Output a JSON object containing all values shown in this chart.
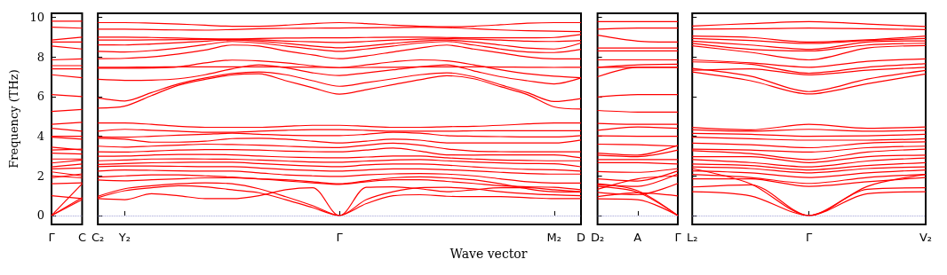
{
  "chart_data": [
    {
      "type": "line",
      "ylabel": "Frequency (THz)",
      "categories": [
        "Γ",
        "C"
      ],
      "ylim": [
        -0.45,
        10.2
      ],
      "yticks": [
        0,
        2,
        4,
        6,
        8,
        10
      ],
      "ref_lines": [
        {
          "axis": "y",
          "value": 0,
          "color": "#8888cc",
          "line_style": "dotted"
        }
      ],
      "series": [
        {
          "color": "#ff0000",
          "values": [
            9.8,
            9.8
          ]
        },
        {
          "color": "#ff0000",
          "values": [
            9.5,
            9.45
          ]
        },
        {
          "color": "#ff0000",
          "values": [
            8.85,
            9.0
          ]
        },
        {
          "color": "#ff0000",
          "values": [
            8.75,
            8.75
          ]
        },
        {
          "color": "#ff0000",
          "values": [
            8.55,
            8.4
          ]
        },
        {
          "color": "#ff0000",
          "values": [
            7.85,
            7.9
          ]
        },
        {
          "color": "#ff0000",
          "values": [
            7.56,
            7.56
          ]
        },
        {
          "color": "#ff0000",
          "values": [
            7.4,
            7.4
          ]
        },
        {
          "color": "#ff0000",
          "values": [
            7.1,
            6.95
          ]
        },
        {
          "color": "#ff0000",
          "values": [
            6.1,
            6.0
          ]
        },
        {
          "color": "#ff0000",
          "values": [
            5.25,
            5.35
          ]
        },
        {
          "color": "#ff0000",
          "values": [
            4.6,
            4.7
          ]
        },
        {
          "color": "#ff0000",
          "values": [
            4.4,
            4.25
          ]
        },
        {
          "color": "#ff0000",
          "values": [
            4.0,
            4.0
          ]
        },
        {
          "color": "#ff0000",
          "values": [
            3.95,
            3.85
          ]
        },
        {
          "color": "#ff0000",
          "values": [
            3.45,
            3.3
          ]
        },
        {
          "color": "#ff0000",
          "values": [
            3.3,
            3.35
          ]
        },
        {
          "color": "#ff0000",
          "values": [
            3.15,
            3.1
          ]
        },
        {
          "color": "#ff0000",
          "values": [
            2.85,
            2.85
          ]
        },
        {
          "color": "#ff0000",
          "values": [
            2.65,
            2.8
          ]
        },
        {
          "color": "#ff0000",
          "values": [
            2.45,
            2.6
          ]
        },
        {
          "color": "#ff0000",
          "values": [
            2.35,
            2.4
          ]
        },
        {
          "color": "#ff0000",
          "values": [
            2.2,
            2.0
          ]
        },
        {
          "color": "#ff0000",
          "values": [
            2.0,
            1.9
          ]
        },
        {
          "color": "#ff0000",
          "values": [
            1.9,
            2.1
          ]
        },
        {
          "color": "#ff0000",
          "values": [
            1.6,
            1.65
          ]
        },
        {
          "color": "#ff0000",
          "values": [
            1.0,
            0.85
          ]
        },
        {
          "color": "#ff0000",
          "values": [
            0,
            1.6
          ]
        },
        {
          "color": "#ff0000",
          "values": [
            0,
            0.9
          ]
        },
        {
          "color": "#ff0000",
          "values": [
            0,
            0.8
          ]
        }
      ]
    },
    {
      "type": "line",
      "xlabel": "Wave vector",
      "tick_labels": "x",
      "categories": [
        "C₂",
        "Y₂",
        null,
        null,
        null,
        null,
        null,
        null,
        null,
        "Γ",
        null,
        null,
        null,
        null,
        null,
        null,
        null,
        "M₂",
        "D"
      ],
      "ylim": [
        -0.45,
        10.2
      ],
      "yticks": [
        0,
        2,
        4,
        6,
        8,
        10
      ],
      "ref_lines": [
        {
          "axis": "y",
          "value": 0,
          "color": "#8888cc",
          "line_style": "dotted"
        }
      ],
      "series": [
        {
          "color": "#ff0000",
          "values": [
            9.73,
            9.73,
            9.7,
            9.66,
            9.6,
            9.55,
            9.55,
            9.6,
            9.68,
            9.73,
            9.68,
            9.6,
            9.55,
            9.52,
            9.55,
            9.62,
            9.7,
            9.73,
            9.73
          ]
        },
        {
          "color": "#ff0000",
          "values": [
            9.4,
            9.4,
            9.38,
            9.36,
            9.35,
            9.38,
            9.42,
            9.44,
            9.45,
            9.46,
            9.47,
            9.48,
            9.5,
            9.48,
            9.42,
            9.36,
            9.32,
            9.3,
            9.28
          ]
        },
        {
          "color": "#ff0000",
          "values": [
            9.0,
            9.0,
            8.98,
            8.95,
            8.92,
            8.91,
            8.93,
            8.95,
            8.96,
            8.96,
            8.98,
            9.0,
            9.0,
            8.98,
            8.96,
            8.96,
            8.96,
            8.98,
            9.13
          ]
        },
        {
          "color": "#ff0000",
          "values": [
            8.85,
            8.85,
            8.86,
            8.87,
            8.88,
            8.88,
            8.86,
            8.8,
            8.76,
            8.73,
            8.78,
            8.85,
            8.9,
            8.92,
            8.9,
            8.85,
            8.8,
            8.78,
            8.83
          ]
        },
        {
          "color": "#ff0000",
          "values": [
            8.61,
            8.6,
            8.65,
            8.72,
            8.8,
            8.85,
            8.8,
            8.68,
            8.55,
            8.46,
            8.55,
            8.68,
            8.8,
            8.85,
            8.75,
            8.6,
            8.45,
            8.4,
            8.7
          ]
        },
        {
          "color": "#ff0000",
          "values": [
            8.28,
            8.25,
            8.32,
            8.45,
            8.62,
            8.78,
            8.7,
            8.55,
            8.4,
            8.28,
            8.4,
            8.55,
            8.7,
            8.78,
            8.6,
            8.4,
            8.25,
            8.22,
            8.38
          ]
        },
        {
          "color": "#ff0000",
          "values": [
            7.91,
            7.93,
            8.0,
            8.15,
            8.35,
            8.6,
            8.55,
            8.3,
            8.1,
            7.91,
            8.05,
            8.25,
            8.45,
            8.6,
            8.4,
            8.2,
            8.0,
            7.9,
            7.9
          ]
        },
        {
          "color": "#ff0000",
          "values": [
            7.48,
            7.48,
            7.49,
            7.5,
            7.5,
            7.5,
            7.5,
            7.49,
            7.48,
            7.46,
            7.47,
            7.48,
            7.5,
            7.5,
            7.5,
            7.49,
            7.48,
            7.47,
            7.48
          ]
        },
        {
          "color": "#ff0000",
          "values": [
            7.43,
            7.43,
            7.44,
            7.5,
            7.7,
            7.84,
            7.8,
            7.7,
            7.55,
            7.46,
            7.6,
            7.75,
            7.85,
            7.8,
            7.6,
            7.35,
            7.15,
            7.03,
            6.95
          ]
        },
        {
          "color": "#ff0000",
          "values": [
            6.87,
            6.82,
            6.83,
            6.9,
            7.1,
            7.4,
            7.6,
            7.45,
            7.2,
            7.06,
            7.2,
            7.35,
            7.5,
            7.6,
            7.3,
            7.0,
            6.8,
            6.64,
            6.94
          ]
        },
        {
          "color": "#ff0000",
          "values": [
            5.93,
            5.78,
            6.2,
            6.64,
            6.94,
            7.16,
            7.24,
            7.1,
            6.8,
            6.52,
            6.7,
            6.9,
            7.1,
            7.2,
            7.0,
            6.6,
            6.2,
            5.75,
            5.9
          ]
        },
        {
          "color": "#ff0000",
          "values": [
            5.42,
            5.52,
            6.05,
            6.57,
            6.87,
            7.09,
            7.15,
            6.8,
            6.45,
            6.12,
            6.35,
            6.6,
            6.85,
            7.05,
            6.9,
            6.5,
            6.1,
            5.48,
            5.37
          ]
        },
        {
          "color": "#ff0000",
          "values": [
            4.67,
            4.67,
            4.6,
            4.5,
            4.45,
            4.45,
            4.45,
            4.5,
            4.55,
            4.55,
            4.5,
            4.45,
            4.45,
            4.48,
            4.5,
            4.55,
            4.62,
            4.67,
            4.67
          ]
        },
        {
          "color": "#ff0000",
          "values": [
            4.25,
            4.35,
            4.3,
            4.25,
            4.2,
            4.2,
            4.25,
            4.3,
            4.33,
            4.33,
            4.3,
            4.25,
            4.25,
            4.25,
            4.27,
            4.28,
            4.28,
            4.28,
            4.28
          ]
        },
        {
          "color": "#ff0000",
          "values": [
            3.96,
            3.95,
            4.0,
            4.05,
            4.1,
            4.15,
            4.1,
            4.05,
            4.03,
            4.03,
            4.1,
            4.2,
            4.15,
            4.03,
            4.0,
            3.98,
            3.96,
            3.96,
            4.03
          ]
        },
        {
          "color": "#ff0000",
          "values": [
            3.9,
            3.85,
            3.7,
            3.7,
            3.75,
            3.88,
            3.9,
            3.85,
            3.75,
            3.66,
            3.75,
            3.85,
            3.8,
            3.66,
            3.66,
            3.66,
            3.66,
            3.66,
            3.81
          ]
        },
        {
          "color": "#ff0000",
          "values": [
            3.5,
            3.45,
            3.5,
            3.55,
            3.6,
            3.58,
            3.55,
            3.5,
            3.45,
            3.43,
            3.55,
            3.65,
            3.55,
            3.36,
            3.25,
            3.22,
            3.21,
            3.21,
            3.21
          ]
        },
        {
          "color": "#ff0000",
          "values": [
            3.21,
            3.2,
            3.25,
            3.3,
            3.33,
            3.33,
            3.3,
            3.25,
            3.22,
            3.21,
            3.3,
            3.4,
            3.25,
            3.06,
            3.05,
            3.06,
            3.06,
            3.06,
            2.91
          ]
        },
        {
          "color": "#ff0000",
          "values": [
            2.99,
            3.0,
            3.05,
            3.08,
            3.08,
            3.06,
            3.0,
            2.95,
            2.92,
            2.91,
            2.95,
            3.0,
            3.0,
            2.91,
            2.85,
            2.8,
            2.78,
            2.76,
            2.76
          ]
        },
        {
          "color": "#ff0000",
          "values": [
            2.76,
            2.8,
            2.85,
            2.86,
            2.85,
            2.84,
            2.8,
            2.75,
            2.7,
            2.69,
            2.75,
            2.8,
            2.82,
            2.76,
            2.7,
            2.65,
            2.62,
            2.61,
            2.46
          ]
        },
        {
          "color": "#ff0000",
          "values": [
            2.58,
            2.62,
            2.66,
            2.68,
            2.69,
            2.69,
            2.62,
            2.55,
            2.5,
            2.46,
            2.55,
            2.6,
            2.6,
            2.54,
            2.45,
            2.38,
            2.33,
            2.31,
            2.24
          ]
        },
        {
          "color": "#ff0000",
          "values": [
            2.46,
            2.5,
            2.5,
            2.48,
            2.46,
            2.46,
            2.4,
            2.32,
            2.27,
            2.24,
            2.3,
            2.35,
            2.35,
            2.31,
            2.25,
            2.18,
            2.12,
            2.09,
            2.09
          ]
        },
        {
          "color": "#ff0000",
          "values": [
            2.24,
            2.3,
            2.28,
            2.25,
            2.24,
            2.24,
            2.15,
            2.05,
            2.0,
            1.97,
            2.05,
            2.1,
            2.12,
            2.09,
            2.0,
            1.85,
            1.7,
            1.64,
            1.64
          ]
        },
        {
          "color": "#ff0000",
          "values": [
            1.94,
            2.0,
            2.05,
            2.05,
            2.0,
            1.94,
            1.85,
            1.75,
            1.65,
            1.57,
            1.7,
            1.8,
            1.8,
            1.72,
            1.62,
            1.5,
            1.45,
            1.42,
            1.3
          ]
        },
        {
          "color": "#ff0000",
          "values": [
            1.79,
            1.75,
            1.8,
            1.85,
            1.9,
            1.9,
            1.85,
            1.8,
            1.7,
            1.6,
            1.75,
            1.9,
            1.95,
            1.9,
            1.8,
            1.6,
            1.35,
            1.2,
            1.19
          ]
        },
        {
          "color": "#ff0000",
          "values": [
            0.97,
            1.35,
            1.5,
            1.6,
            1.65,
            1.6,
            1.35,
            0.95,
            0.5,
            0,
            1.42,
            1.45,
            1.35,
            1.2,
            1.3,
            1.4,
            1.4,
            1.3,
            1.2
          ]
        },
        {
          "color": "#ff0000",
          "values": [
            0.9,
            1.25,
            1.4,
            1.5,
            1.45,
            1.3,
            1.15,
            0.8,
            0.4,
            0,
            0.8,
            1.2,
            1.4,
            1.42,
            1.35,
            1.2,
            1.1,
            1.04,
            1.0
          ]
        },
        {
          "color": "#ff0000",
          "values": [
            0.85,
            0.8,
            1.1,
            1.0,
            0.85,
            0.85,
            1.0,
            1.3,
            1.4,
            0,
            0.6,
            1.0,
            1.05,
            0.97,
            0.95,
            0.95,
            0.9,
            0.85,
            0.85
          ]
        }
      ]
    },
    {
      "type": "line",
      "tick_labels": "x",
      "categories": [
        "D₂",
        "A",
        "Γ"
      ],
      "ylim": [
        -0.45,
        10.2
      ],
      "yticks": [
        0,
        2,
        4,
        6,
        8,
        10
      ],
      "ref_lines": [
        {
          "axis": "y",
          "value": 0,
          "color": "#8888cc",
          "line_style": "dotted"
        }
      ],
      "series": [
        {
          "color": "#ff0000",
          "values": [
            9.78,
            9.78,
            9.78
          ]
        },
        {
          "color": "#ff0000",
          "values": [
            9.4,
            9.46,
            9.46
          ]
        },
        {
          "color": "#ff0000",
          "values": [
            9.1,
            8.8,
            8.75
          ]
        },
        {
          "color": "#ff0000",
          "values": [
            8.45,
            8.45,
            8.45
          ]
        },
        {
          "color": "#ff0000",
          "values": [
            8.3,
            8.3,
            8.3
          ]
        },
        {
          "color": "#ff0000",
          "values": [
            7.85,
            7.85,
            7.85
          ]
        },
        {
          "color": "#ff0000",
          "values": [
            7.48,
            7.6,
            7.63
          ]
        },
        {
          "color": "#ff0000",
          "values": [
            7.48,
            7.48,
            7.48
          ]
        },
        {
          "color": "#ff0000",
          "values": [
            7.0,
            7.48,
            7.48
          ]
        },
        {
          "color": "#ff0000",
          "values": [
            5.98,
            6.1,
            6.1
          ]
        },
        {
          "color": "#ff0000",
          "values": [
            5.3,
            5.22,
            5.22
          ]
        },
        {
          "color": "#ff0000",
          "values": [
            4.65,
            4.6,
            4.6
          ]
        },
        {
          "color": "#ff0000",
          "values": [
            4.3,
            4.47,
            4.4
          ]
        },
        {
          "color": "#ff0000",
          "values": [
            4.02,
            4.0,
            4.0
          ]
        },
        {
          "color": "#ff0000",
          "values": [
            3.6,
            3.57,
            3.5
          ]
        },
        {
          "color": "#ff0000",
          "values": [
            3.15,
            3.05,
            3.54
          ]
        },
        {
          "color": "#ff0000",
          "values": [
            3.05,
            2.97,
            3.3
          ]
        },
        {
          "color": "#ff0000",
          "values": [
            2.82,
            2.82,
            2.82
          ]
        },
        {
          "color": "#ff0000",
          "values": [
            2.67,
            2.67,
            2.6
          ]
        },
        {
          "color": "#ff0000",
          "values": [
            2.22,
            2.18,
            2.37
          ]
        },
        {
          "color": "#ff0000",
          "values": [
            1.85,
            1.74,
            2.25
          ]
        },
        {
          "color": "#ff0000",
          "values": [
            1.55,
            1.47,
            2.1
          ]
        },
        {
          "color": "#ff0000",
          "values": [
            1.32,
            1.85,
            2.0
          ]
        },
        {
          "color": "#ff0000",
          "values": [
            1.17,
            1.05,
            1.62
          ]
        },
        {
          "color": "#ff0000",
          "values": [
            0.95,
            1.14,
            0.99
          ]
        },
        {
          "color": "#ff0000",
          "values": [
            0.84,
            0.8,
            0
          ]
        },
        {
          "color": "#ff0000",
          "values": [
            1.47,
            1.17,
            0
          ]
        },
        {
          "color": "#ff0000",
          "values": [
            1.6,
            1.25,
            0
          ]
        }
      ]
    },
    {
      "type": "line",
      "tick_labels": "x",
      "categories": [
        "L₂",
        null,
        "Γ",
        null,
        "V₂"
      ],
      "ylim": [
        -0.45,
        10.2
      ],
      "yticks": [
        0,
        2,
        4,
        6,
        8,
        10
      ],
      "ref_lines": [
        {
          "axis": "y",
          "value": 0,
          "color": "#8888cc",
          "line_style": "dotted"
        }
      ],
      "series": [
        {
          "color": "#ff0000",
          "values": [
            9.56,
            9.68,
            9.78,
            9.66,
            9.53
          ]
        },
        {
          "color": "#ff0000",
          "values": [
            9.4,
            9.42,
            9.46,
            9.42,
            9.38
          ]
        },
        {
          "color": "#ff0000",
          "values": [
            9.05,
            8.98,
            8.75,
            8.86,
            9.05
          ]
        },
        {
          "color": "#ff0000",
          "values": [
            8.93,
            8.83,
            8.68,
            8.83,
            8.93
          ]
        },
        {
          "color": "#ff0000",
          "values": [
            8.8,
            8.6,
            8.38,
            8.75,
            8.81
          ]
        },
        {
          "color": "#ff0000",
          "values": [
            8.68,
            8.38,
            8.3,
            8.6,
            8.69
          ]
        },
        {
          "color": "#ff0000",
          "values": [
            8.56,
            8.23,
            7.85,
            8.45,
            8.57
          ]
        },
        {
          "color": "#ff0000",
          "values": [
            7.85,
            7.7,
            7.48,
            7.78,
            7.9
          ]
        },
        {
          "color": "#ff0000",
          "values": [
            7.75,
            7.63,
            7.18,
            7.48,
            7.66
          ]
        },
        {
          "color": "#ff0000",
          "values": [
            7.33,
            7.4,
            7.1,
            7.33,
            7.48
          ]
        },
        {
          "color": "#ff0000",
          "values": [
            7.42,
            7.03,
            6.25,
            6.88,
            7.32
          ]
        },
        {
          "color": "#ff0000",
          "values": [
            7.24,
            6.8,
            6.13,
            6.65,
            7.14
          ]
        },
        {
          "color": "#ff0000",
          "values": [
            4.44,
            4.32,
            4.6,
            4.4,
            4.47
          ]
        },
        {
          "color": "#ff0000",
          "values": [
            4.32,
            4.25,
            4.35,
            4.25,
            4.3
          ]
        },
        {
          "color": "#ff0000",
          "values": [
            4.14,
            4.1,
            4.0,
            4.02,
            4.1
          ]
        },
        {
          "color": "#ff0000",
          "values": [
            3.95,
            3.87,
            3.8,
            3.8,
            3.87
          ]
        },
        {
          "color": "#ff0000",
          "values": [
            3.65,
            3.57,
            3.42,
            3.65,
            3.72
          ]
        },
        {
          "color": "#ff0000",
          "values": [
            3.35,
            3.3,
            3.2,
            3.42,
            3.5
          ]
        },
        {
          "color": "#ff0000",
          "values": [
            3.27,
            3.12,
            2.82,
            3.2,
            3.35
          ]
        },
        {
          "color": "#ff0000",
          "values": [
            2.97,
            2.97,
            2.67,
            2.97,
            3.05
          ]
        },
        {
          "color": "#ff0000",
          "values": [
            2.82,
            2.67,
            2.45,
            2.75,
            2.9
          ]
        },
        {
          "color": "#ff0000",
          "values": [
            2.6,
            2.52,
            2.3,
            2.52,
            2.67
          ]
        },
        {
          "color": "#ff0000",
          "values": [
            2.45,
            2.37,
            2.15,
            2.37,
            2.45
          ]
        },
        {
          "color": "#ff0000",
          "values": [
            2.25,
            2.15,
            1.92,
            2.15,
            2.3
          ]
        },
        {
          "color": "#ff0000",
          "values": [
            2.07,
            1.92,
            1.62,
            1.92,
            2.07
          ]
        },
        {
          "color": "#ff0000",
          "values": [
            1.85,
            1.85,
            1.47,
            1.7,
            1.92
          ]
        },
        {
          "color": "#ff0000",
          "values": [
            1.44,
            1.55,
            0,
            1.32,
            1.4
          ]
        },
        {
          "color": "#ff0000",
          "values": [
            1.2,
            0.99,
            0,
            1.1,
            1.2
          ]
        },
        {
          "color": "#ff0000",
          "values": [
            2.37,
            1.6,
            0,
            1.47,
            2.07
          ]
        }
      ]
    }
  ]
}
